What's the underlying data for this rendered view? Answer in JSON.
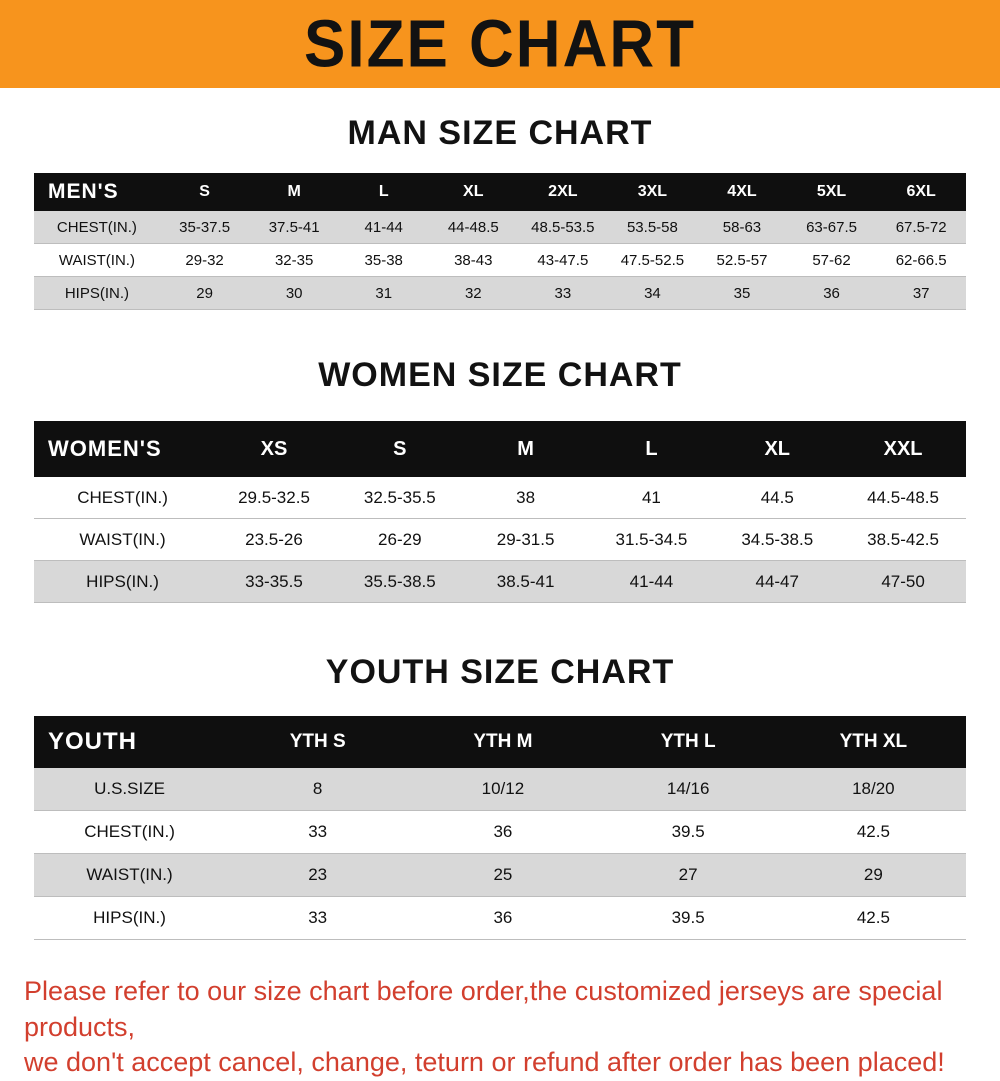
{
  "banner": {
    "title": "SIZE CHART"
  },
  "sections": [
    {
      "heading": "MAN SIZE CHART",
      "table": {
        "header": [
          "MEN'S",
          "S",
          "M",
          "L",
          "XL",
          "2XL",
          "3XL",
          "4XL",
          "5XL",
          "6XL"
        ],
        "stripes": [
          "gray",
          "white",
          "gray"
        ],
        "rows": [
          {
            "label": "CHEST(IN.)",
            "values": [
              "35-37.5",
              "37.5-41",
              "41-44",
              "44-48.5",
              "48.5-53.5",
              "53.5-58",
              "58-63",
              "63-67.5",
              "67.5-72"
            ]
          },
          {
            "label": "WAIST(IN.)",
            "values": [
              "29-32",
              "32-35",
              "35-38",
              "38-43",
              "43-47.5",
              "47.5-52.5",
              "52.5-57",
              "57-62",
              "62-66.5"
            ]
          },
          {
            "label": "HIPS(IN.)",
            "values": [
              "29",
              "30",
              "31",
              "32",
              "33",
              "34",
              "35",
              "36",
              "37"
            ]
          }
        ]
      }
    },
    {
      "heading": "WOMEN SIZE CHART",
      "table": {
        "header": [
          "WOMEN'S",
          "XS",
          "S",
          "M",
          "L",
          "XL",
          "XXL"
        ],
        "stripes": [
          "white",
          "white",
          "gray"
        ],
        "rows": [
          {
            "label": "CHEST(IN.)",
            "values": [
              "29.5-32.5",
              "32.5-35.5",
              "38",
              "41",
              "44.5",
              "44.5-48.5"
            ]
          },
          {
            "label": "WAIST(IN.)",
            "values": [
              "23.5-26",
              "26-29",
              "29-31.5",
              "31.5-34.5",
              "34.5-38.5",
              "38.5-42.5"
            ]
          },
          {
            "label": "HIPS(IN.)",
            "values": [
              "33-35.5",
              "35.5-38.5",
              "38.5-41",
              "41-44",
              "44-47",
              "47-50"
            ]
          }
        ]
      }
    },
    {
      "heading": "YOUTH SIZE CHART",
      "table": {
        "header": [
          "YOUTH",
          "YTH S",
          "YTH M",
          "YTH L",
          "YTH XL"
        ],
        "stripes": [
          "gray",
          "white",
          "gray",
          "white"
        ],
        "rows": [
          {
            "label": "U.S.SIZE",
            "values": [
              "8",
              "10/12",
              "14/16",
              "18/20"
            ]
          },
          {
            "label": "CHEST(IN.)",
            "values": [
              "33",
              "36",
              "39.5",
              "42.5"
            ]
          },
          {
            "label": "WAIST(IN.)",
            "values": [
              "23",
              "25",
              "27",
              "29"
            ]
          },
          {
            "label": "HIPS(IN.)",
            "values": [
              "33",
              "36",
              "39.5",
              "42.5"
            ]
          }
        ]
      }
    }
  ],
  "footer": {
    "lines": [
      "Please refer to our size chart before order,the customized jerseys are special products,",
      "we don't accept cancel, change, teturn or refund after order has been placed!"
    ]
  },
  "colors": {
    "banner_orange": "#f7941d",
    "header_black": "#0f0f0f",
    "row_gray": "#d8d8d8",
    "footer_red": "#d23f2e"
  }
}
